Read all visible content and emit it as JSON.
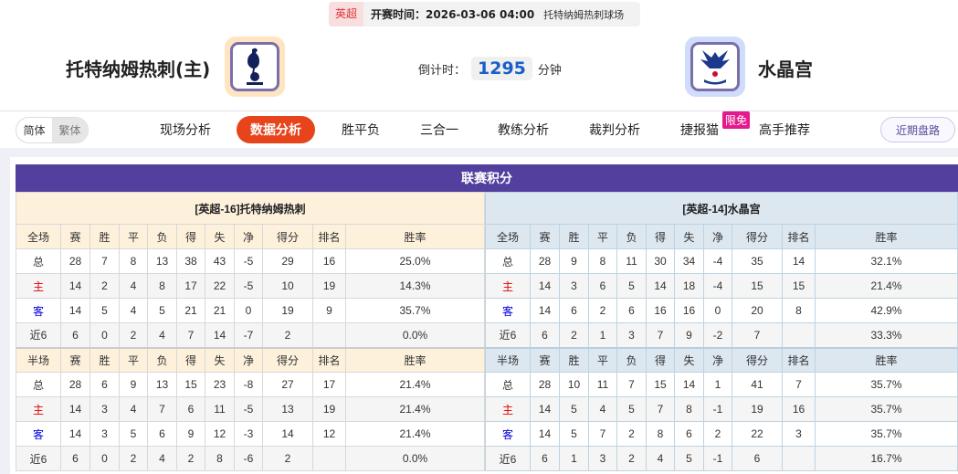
{
  "match": {
    "league": "英超",
    "kickoff_label": "开赛时间：",
    "kickoff": "2026-03-06 04:00",
    "venue": "托特纳姆热刺球场"
  },
  "home": {
    "name": "托特纳姆热刺(主)",
    "logo": "tottenham-crest"
  },
  "away": {
    "name": "水晶宫",
    "logo": "crystal-palace-crest"
  },
  "countdown": {
    "label": "倒计时：",
    "value": "1295",
    "unit": "分钟"
  },
  "lang": {
    "simplified": "简体",
    "traditional": "繁体"
  },
  "nav": [
    {
      "label": "现场分析"
    },
    {
      "label": "数据分析",
      "active": true
    },
    {
      "label": "胜平负"
    },
    {
      "label": "三合一"
    },
    {
      "label": "教练分析"
    },
    {
      "label": "裁判分析"
    },
    {
      "label": "捷报猫",
      "badge": "限免"
    },
    {
      "label": "高手推荐"
    }
  ],
  "recent_button": "近期盘路",
  "colors": {
    "accent": "#e8441b",
    "title_bar": "#523f9e",
    "home_label": "#e00000",
    "away_label": "#0000dd"
  },
  "standings": {
    "title": "联赛积分",
    "full_columns": [
      "全场",
      "赛",
      "胜",
      "平",
      "负",
      "得",
      "失",
      "净",
      "得分",
      "排名",
      "胜率"
    ],
    "half_columns": [
      "半场",
      "赛",
      "胜",
      "平",
      "负",
      "得",
      "失",
      "净",
      "得分",
      "排名",
      "胜率"
    ],
    "home_team": {
      "header": "[英超-16]托特纳姆热刺",
      "full": [
        [
          "总",
          "28",
          "7",
          "8",
          "13",
          "38",
          "43",
          "-5",
          "29",
          "16",
          "25.0%"
        ],
        [
          "主",
          "14",
          "2",
          "4",
          "8",
          "17",
          "22",
          "-5",
          "10",
          "19",
          "14.3%"
        ],
        [
          "客",
          "14",
          "5",
          "4",
          "5",
          "21",
          "21",
          "0",
          "19",
          "9",
          "35.7%"
        ],
        [
          "近6",
          "6",
          "0",
          "2",
          "4",
          "7",
          "14",
          "-7",
          "2",
          "",
          "0.0%"
        ]
      ],
      "half": [
        [
          "总",
          "28",
          "6",
          "9",
          "13",
          "15",
          "23",
          "-8",
          "27",
          "17",
          "21.4%"
        ],
        [
          "主",
          "14",
          "3",
          "4",
          "7",
          "6",
          "11",
          "-5",
          "13",
          "19",
          "21.4%"
        ],
        [
          "客",
          "14",
          "3",
          "5",
          "6",
          "9",
          "12",
          "-3",
          "14",
          "12",
          "21.4%"
        ],
        [
          "近6",
          "6",
          "0",
          "2",
          "4",
          "2",
          "8",
          "-6",
          "2",
          "",
          "0.0%"
        ]
      ]
    },
    "away_team": {
      "header": "[英超-14]水晶宫",
      "full": [
        [
          "总",
          "28",
          "9",
          "8",
          "11",
          "30",
          "34",
          "-4",
          "35",
          "14",
          "32.1%"
        ],
        [
          "主",
          "14",
          "3",
          "6",
          "5",
          "14",
          "18",
          "-4",
          "15",
          "15",
          "21.4%"
        ],
        [
          "客",
          "14",
          "6",
          "2",
          "6",
          "16",
          "16",
          "0",
          "20",
          "8",
          "42.9%"
        ],
        [
          "近6",
          "6",
          "2",
          "1",
          "3",
          "7",
          "9",
          "-2",
          "7",
          "",
          "33.3%"
        ]
      ],
      "half": [
        [
          "总",
          "28",
          "10",
          "11",
          "7",
          "15",
          "14",
          "1",
          "41",
          "7",
          "35.7%"
        ],
        [
          "主",
          "14",
          "5",
          "4",
          "5",
          "7",
          "8",
          "-1",
          "19",
          "16",
          "35.7%"
        ],
        [
          "客",
          "14",
          "5",
          "7",
          "2",
          "8",
          "6",
          "2",
          "22",
          "3",
          "35.7%"
        ],
        [
          "近6",
          "6",
          "1",
          "3",
          "2",
          "4",
          "5",
          "-1",
          "6",
          "",
          "16.7%"
        ]
      ]
    }
  }
}
